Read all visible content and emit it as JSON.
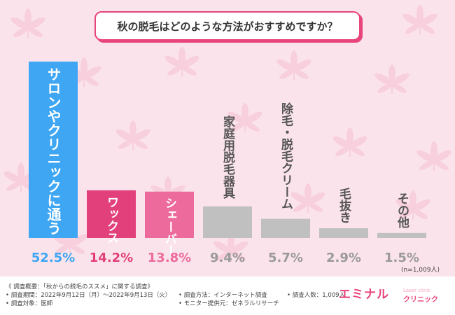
{
  "title": "秋の脱毛はどのような方法がおすすめですか？",
  "chart_data": {
    "type": "bar",
    "categories": [
      "サロンやクリニックに通う",
      "ワックス",
      "シェーバー",
      "家庭用脱毛器具",
      "除毛・脱毛クリーム",
      "毛抜き",
      "その他"
    ],
    "values": [
      52.5,
      14.2,
      13.8,
      9.4,
      5.7,
      2.9,
      1.5
    ],
    "value_labels": [
      "52.5%",
      "14.2%",
      "13.8%",
      "9.4%",
      "5.7%",
      "2.9%",
      "1.5%"
    ],
    "colors": [
      "#3ea6f3",
      "#e2407a",
      "#ec6b9c",
      "#c0c0c0",
      "#c0c0c0",
      "#c0c0c0",
      "#c0c0c0"
    ],
    "label_colors": [
      "#3ea6f3",
      "#e2407a",
      "#ec6b9c",
      "#9a9a9a",
      "#9a9a9a",
      "#9a9a9a",
      "#9a9a9a"
    ],
    "ylim": [
      0,
      52.5
    ],
    "grid": false
  },
  "n_note": "(n=1,009人)",
  "footer": {
    "summary": "《 調査概要：「秋からの脱毛のススメ」に関する調査》",
    "period": "• 調査期間：2022年9月12日（月）～2022年9月13日（火）",
    "target": "• 調査対象：医師",
    "method": "• 調査方法：インターネット調査",
    "provider": "• モニター提供元：ゼネラルリサーチ",
    "count": "• 調査人数：1,009人"
  },
  "logo": {
    "main": "エミナル",
    "sub": "クリニック",
    "tag": "Laser clinic"
  }
}
